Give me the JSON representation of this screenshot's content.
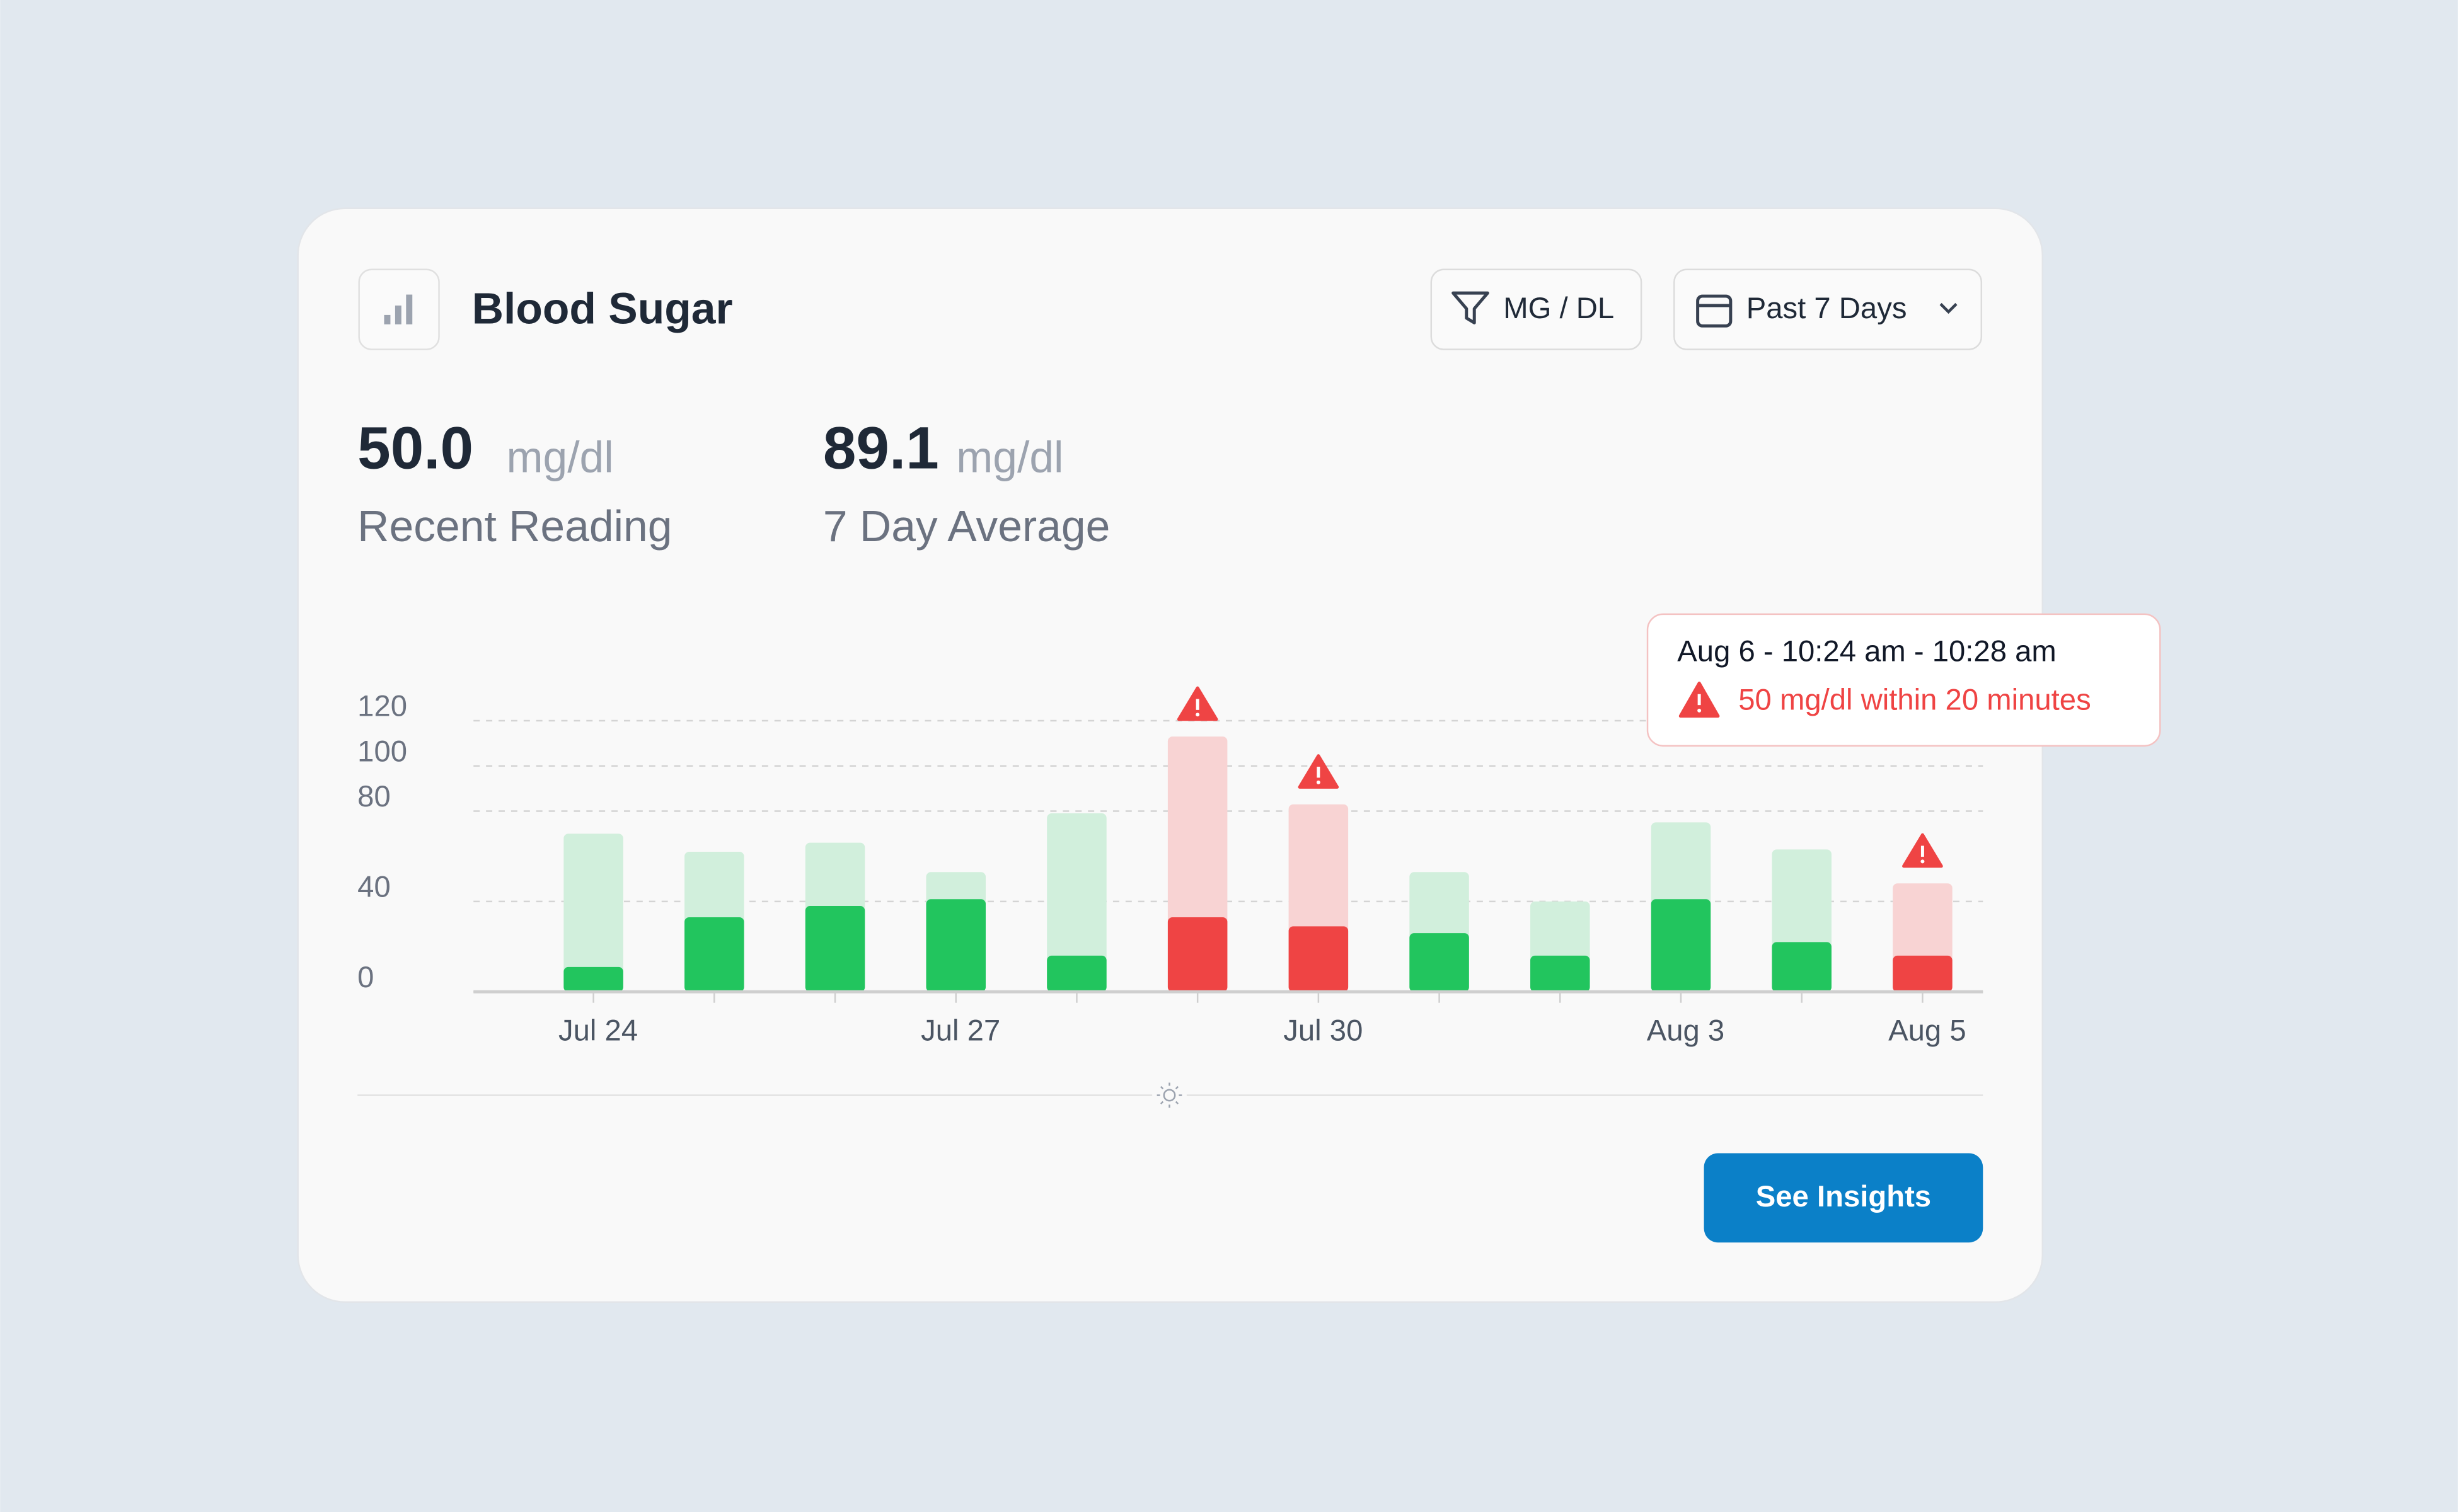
{
  "header": {
    "title": "Blood Sugar",
    "unit_filter": "MG / DL",
    "range": "Past 7 Days"
  },
  "stats": [
    {
      "value": "50.0",
      "unit": "mg/dl",
      "label": "Recent Reading"
    },
    {
      "value": "89.1",
      "unit": "mg/dl",
      "label": "7 Day Average"
    }
  ],
  "chart_data": {
    "type": "bar",
    "categories": [
      "Jul 24",
      null,
      null,
      "Jul 27",
      null,
      null,
      "Jul 30",
      null,
      null,
      "Aug 3",
      null,
      "Aug 5"
    ],
    "series": [
      {
        "values": [
          70,
          62,
          66,
          53,
          79,
          113,
          83,
          53,
          40,
          75,
          63,
          48
        ],
        "colors": [
          "#d1efdc",
          "#d1efdc",
          "#d1efdc",
          "#d1efdc",
          "#d1efdc",
          "#f8d3d3",
          "#f8d3d3",
          "#d1efdc",
          "#d1efdc",
          "#d1efdc",
          "#d1efdc",
          "#f8d3d3"
        ]
      },
      {
        "values": [
          11,
          33,
          38,
          41,
          16,
          33,
          29,
          26,
          16,
          41,
          22,
          16
        ],
        "colors": [
          "#22c55e",
          "#22c55e",
          "#22c55e",
          "#22c55e",
          "#22c55e",
          "#ef4444",
          "#ef4444",
          "#22c55e",
          "#22c55e",
          "#22c55e",
          "#22c55e",
          "#ef4444"
        ]
      }
    ],
    "ylim": [
      0,
      120
    ],
    "yticks": [
      0,
      40,
      80,
      100,
      120
    ],
    "grid": true
  },
  "tooltip": {
    "title": "Aug 6 - 10:24 am - 10:28 am",
    "message": "50 mg/dl within 20 minutes"
  },
  "button": "See Insights"
}
